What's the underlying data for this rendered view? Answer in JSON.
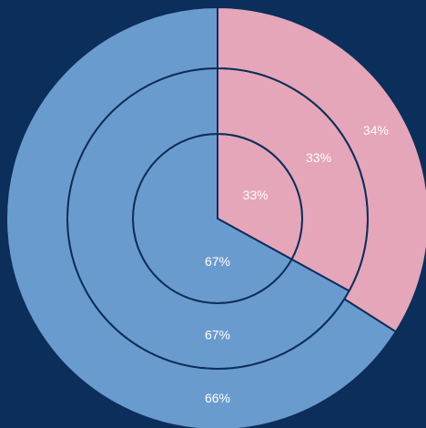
{
  "chart_data": {
    "type": "pie",
    "colors": [
      "#e5a6b9",
      "#6a9bcf"
    ],
    "series": [
      {
        "values": [
          33,
          67
        ],
        "value_labels": [
          "33%",
          "67%"
        ]
      },
      {
        "values": [
          33,
          67
        ],
        "value_labels": [
          "33%",
          "67%"
        ]
      },
      {
        "values": [
          34,
          66
        ],
        "value_labels": [
          "34%",
          "66%"
        ]
      }
    ]
  }
}
